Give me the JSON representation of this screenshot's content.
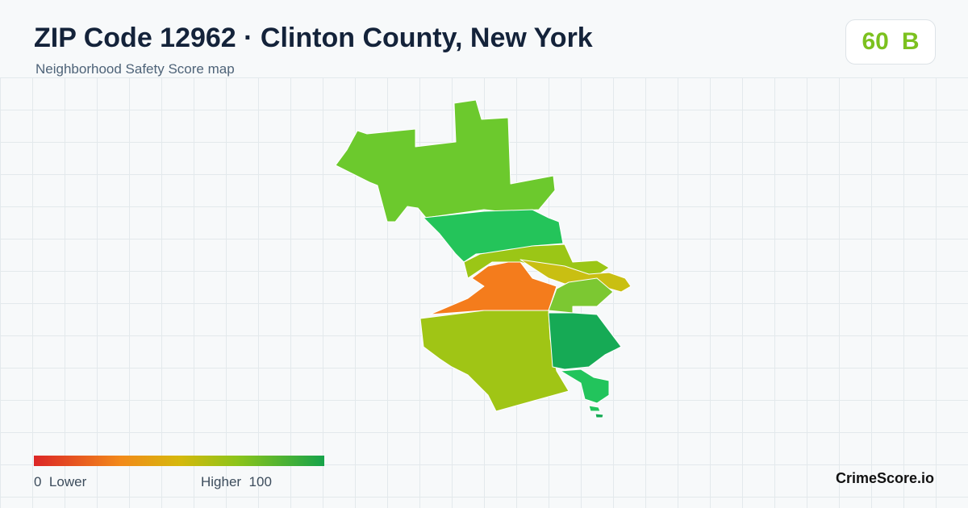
{
  "header": {
    "title": "ZIP Code 12962 · Clinton County, New York",
    "subtitle": "Neighborhood Safety Score map"
  },
  "score": {
    "value": 60,
    "grade": "B"
  },
  "legend": {
    "min": 0,
    "min_label": "Lower",
    "max_label": "Higher",
    "max": 100
  },
  "brand": "CrimeScore.io"
}
